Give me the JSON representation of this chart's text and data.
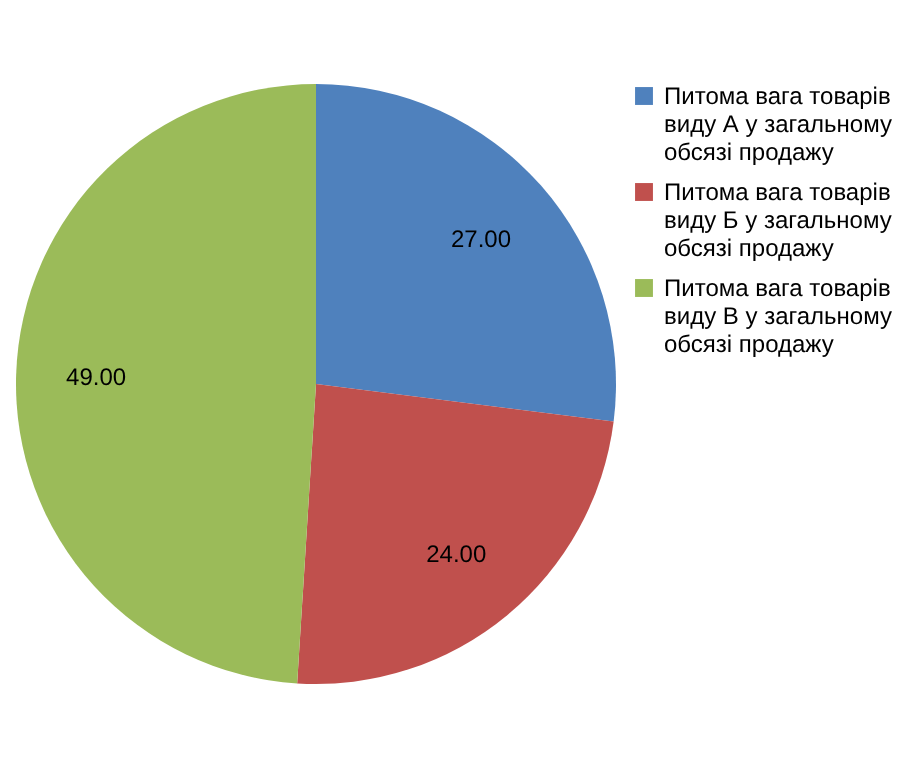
{
  "chart_data": {
    "type": "pie",
    "categories": [
      "Питома вага товарів виду А у загальному обсязі продажу",
      "Питома вага товарів виду Б у загальному обсязі продажу",
      "Питома вага товарів виду В у загальному обсязі продажу"
    ],
    "values": [
      27,
      24,
      49
    ],
    "value_labels": [
      "27.00",
      "24.00",
      "49.00"
    ],
    "colors": [
      "#4f81bd",
      "#c0504d",
      "#9bbb59"
    ],
    "legend": "right"
  }
}
